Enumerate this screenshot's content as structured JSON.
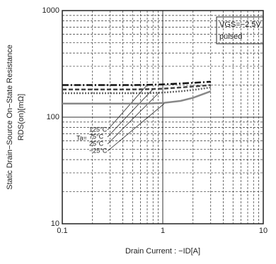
{
  "chart_data": {
    "type": "line",
    "x_label": "Drain Current : −ID[A]",
    "y_label": "Static Drain−Source On−State Resistance",
    "y_label_unit": "RDS(on)[mΩ]",
    "annotations": [
      "VGS=−2.5V",
      "pulsed",
      "Ta="
    ],
    "x": [
      0.1,
      0.2,
      0.5,
      0.7,
      1,
      1.5,
      2,
      3
    ],
    "series": [
      {
        "name": "125°C",
        "color": "#111111",
        "style": "dashdot",
        "values": [
          200,
          200,
          200,
          201,
          203,
          207,
          210,
          215
        ]
      },
      {
        "name": "75°C",
        "color": "#444444",
        "style": "dashed",
        "values": [
          182,
          182,
          182,
          183,
          185,
          190,
          194,
          200
        ]
      },
      {
        "name": "25°C",
        "color": "#666666",
        "style": "dotted",
        "values": [
          168,
          168,
          168,
          168,
          170,
          175,
          180,
          190
        ]
      },
      {
        "name": "−25°C",
        "color": "#888888",
        "style": "solid",
        "values": [
          134,
          134,
          134,
          134,
          136,
          142,
          152,
          175
        ]
      }
    ],
    "xlim": [
      0.1,
      10
    ],
    "ylim": [
      10,
      1000
    ],
    "xticks": [
      0.1,
      1,
      10
    ],
    "yticks": [
      10,
      100,
      1000
    ],
    "log_x": true,
    "log_y": true,
    "grid": true,
    "minor_grid": true
  }
}
